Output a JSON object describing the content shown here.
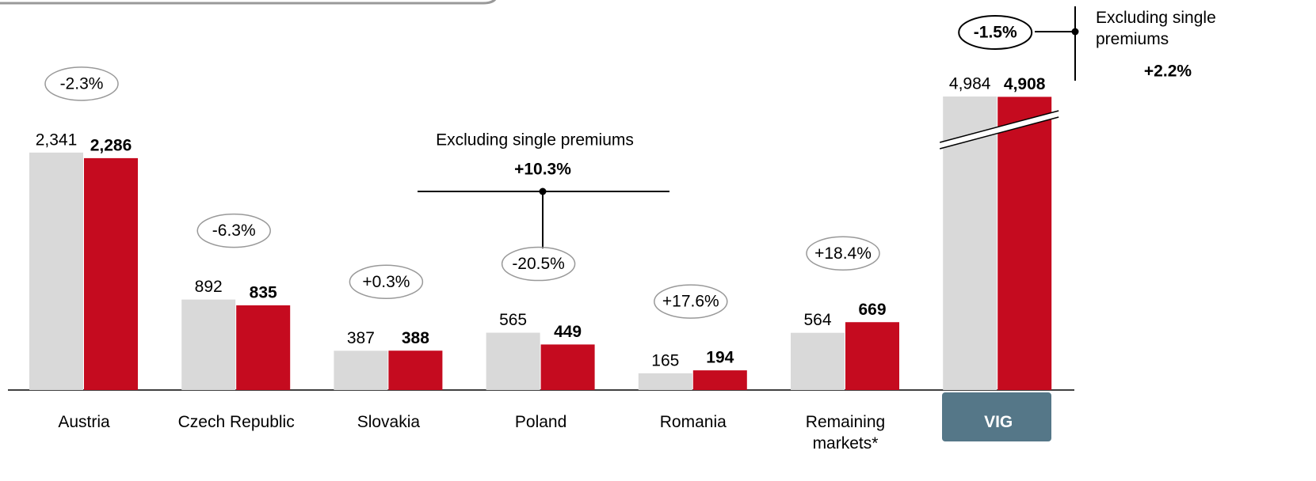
{
  "chart_data": {
    "type": "bar",
    "categories": [
      "Austria",
      "Czech Republic",
      "Slovakia",
      "Poland",
      "Romania",
      "Remaining markets*",
      "VIG"
    ],
    "series": [
      {
        "color": "#d9d9d9",
        "values": [
          2341,
          892,
          387,
          565,
          165,
          564,
          4984
        ],
        "value_labels": [
          "2,341",
          "892",
          "387",
          "565",
          "165",
          "564",
          "4,984"
        ]
      },
      {
        "color": "#c50b1f",
        "values": [
          2286,
          835,
          388,
          449,
          194,
          669,
          4908
        ],
        "value_labels": [
          "2,286",
          "835",
          "388",
          "449",
          "194",
          "669",
          "4,908"
        ]
      }
    ],
    "changes": [
      "-2.3%",
      "-6.3%",
      "+0.3%",
      "-20.5%",
      "+17.6%",
      "+18.4%",
      "-1.5%"
    ],
    "ylim": [
      0,
      2800
    ],
    "annotations": [
      {
        "text": "Excluding single premiums",
        "value": "+10.3%"
      },
      {
        "text": "Excluding single premiums",
        "value": "+2.2%"
      }
    ]
  }
}
